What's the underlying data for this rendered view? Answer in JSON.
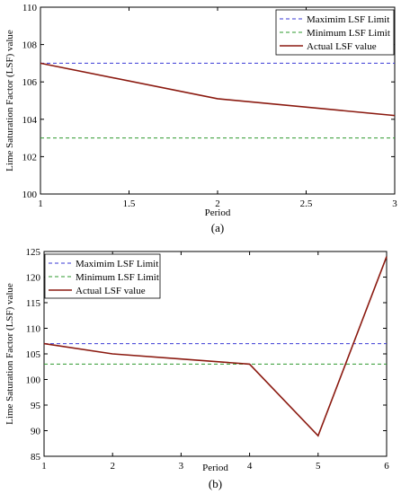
{
  "chart_data": [
    {
      "panel_label": "(a)",
      "type": "line",
      "xlabel": "Period",
      "ylabel": "Lime Saturation Factor (LSF) value",
      "xlim": [
        1,
        3
      ],
      "ylim": [
        100,
        110
      ],
      "x_ticks": [
        "1",
        "1.5",
        "2",
        "2.5",
        "3"
      ],
      "y_ticks": [
        "100",
        "102",
        "104",
        "106",
        "108",
        "110"
      ],
      "legend_position": "top-right",
      "grid": false,
      "series": [
        {
          "name": "Maximim LSF Limit",
          "style": "dashed",
          "color": "#3a3ad6",
          "x": [
            1,
            3
          ],
          "y": [
            107,
            107
          ]
        },
        {
          "name": "Minimum LSF Limit",
          "style": "dashed",
          "color": "#2e9a2e",
          "x": [
            1,
            3
          ],
          "y": [
            103,
            103
          ]
        },
        {
          "name": "Actual LSF value",
          "style": "solid",
          "color": "#8b1a10",
          "x": [
            1,
            2,
            3
          ],
          "y": [
            107,
            105.1,
            104.2
          ]
        }
      ]
    },
    {
      "panel_label": "(b)",
      "type": "line",
      "xlabel": "Period",
      "ylabel": "Lime Saturation Factor (LSF) value",
      "xlim": [
        1,
        6
      ],
      "ylim": [
        85,
        125
      ],
      "x_ticks": [
        "1",
        "2",
        "3",
        "4",
        "5",
        "6"
      ],
      "y_ticks": [
        "85",
        "90",
        "95",
        "100",
        "105",
        "110",
        "115",
        "120",
        "125"
      ],
      "legend_position": "top-left",
      "grid": false,
      "series": [
        {
          "name": "Maximim LSF Limit",
          "style": "dashed",
          "color": "#3a3ad6",
          "x": [
            1,
            6
          ],
          "y": [
            107,
            107
          ]
        },
        {
          "name": "Minimum LSF Limit",
          "style": "dashed",
          "color": "#2e9a2e",
          "x": [
            1,
            6
          ],
          "y": [
            103,
            103
          ]
        },
        {
          "name": "Actual LSF value",
          "style": "solid",
          "color": "#8b1a10",
          "x": [
            1,
            2,
            3,
            4,
            5,
            6
          ],
          "y": [
            107,
            105,
            104,
            103,
            89,
            124
          ]
        }
      ]
    }
  ]
}
